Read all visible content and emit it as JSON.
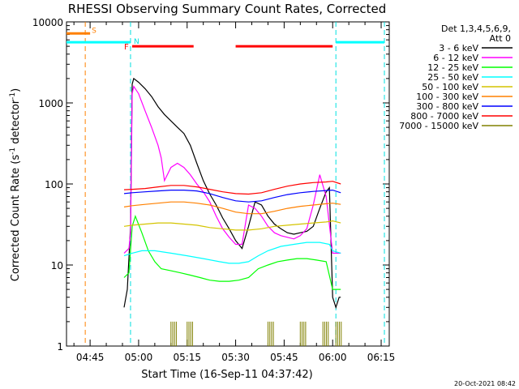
{
  "chart_data": {
    "type": "line",
    "title": "RHESSI Observing Summary Count Rates, Corrected",
    "xlabel": "Start Time (16-Sep-11 04:37:42)",
    "ylabel_main": "Corrected Count Rate (s",
    "ylabel_sup": "-1",
    "ylabel_mid": " detector",
    "ylabel_sup2": "-1",
    "ylabel_end": ")",
    "yscale": "log",
    "ylim": [
      1,
      10000
    ],
    "xlim_min": [
      37.7,
      137.5
    ],
    "x_unit": "minutes after 04:00 UT",
    "x_ticks": [
      {
        "min": 45,
        "label": "04:45"
      },
      {
        "min": 60,
        "label": "05:00"
      },
      {
        "min": 75,
        "label": "05:15"
      },
      {
        "min": 90,
        "label": "05:30"
      },
      {
        "min": 105,
        "label": "05:45"
      },
      {
        "min": 120,
        "label": "06:00"
      },
      {
        "min": 135,
        "label": "06:15"
      }
    ],
    "y_ticks": [
      {
        "v": 1,
        "label": "1"
      },
      {
        "v": 10,
        "label": "10"
      },
      {
        "v": 100,
        "label": "100"
      },
      {
        "v": 1000,
        "label": "1000"
      },
      {
        "v": 10000,
        "label": "10000"
      }
    ],
    "legend": {
      "header1": "Det 1,3,4,5,6,9,",
      "header2": "Att 0",
      "placement": "right"
    },
    "annotations": {
      "S": "S",
      "N": "N",
      "F": "F",
      "timestamp": "20-Oct-2021 08:42"
    },
    "markers": {
      "saa_line_min": 43.5,
      "night_lines_min": [
        57.5,
        121,
        136
      ],
      "flare_bars": [
        [
          58,
          77
        ],
        [
          90,
          120
        ]
      ],
      "flare_level": 5000,
      "night_bars": [
        [
          37.7,
          57.5
        ],
        [
          121,
          136
        ]
      ],
      "night_level": 5600,
      "saa_bar": [
        37.7,
        45
      ],
      "saa_level": 7200
    },
    "series": [
      {
        "name": "3 - 6 keV",
        "color": "#000000",
        "points": [
          [
            55.5,
            3
          ],
          [
            56.5,
            5
          ],
          [
            57.5,
            30
          ],
          [
            58,
            1700
          ],
          [
            58.5,
            2000
          ],
          [
            60,
            1800
          ],
          [
            62,
            1500
          ],
          [
            64,
            1200
          ],
          [
            66,
            900
          ],
          [
            68,
            720
          ],
          [
            70,
            600
          ],
          [
            72,
            500
          ],
          [
            74,
            420
          ],
          [
            76,
            300
          ],
          [
            78,
            180
          ],
          [
            80,
            110
          ],
          [
            82,
            75
          ],
          [
            84,
            55
          ],
          [
            86,
            38
          ],
          [
            88,
            28
          ],
          [
            90,
            20
          ],
          [
            92,
            16
          ],
          [
            94,
            30
          ],
          [
            96,
            60
          ],
          [
            98,
            55
          ],
          [
            100,
            40
          ],
          [
            102,
            32
          ],
          [
            104,
            28
          ],
          [
            106,
            25
          ],
          [
            108,
            24
          ],
          [
            110,
            25
          ],
          [
            112,
            26
          ],
          [
            114,
            30
          ],
          [
            116,
            50
          ],
          [
            118,
            80
          ],
          [
            119,
            90
          ],
          [
            120,
            4
          ],
          [
            121,
            3
          ],
          [
            122,
            4
          ],
          [
            122.5,
            4
          ]
        ]
      },
      {
        "name": "6 - 12 keV",
        "color": "#ff00ff",
        "points": [
          [
            55.5,
            14
          ],
          [
            57,
            16
          ],
          [
            57.5,
            25
          ],
          [
            58,
            1300
          ],
          [
            58.5,
            1600
          ],
          [
            60,
            1300
          ],
          [
            62,
            800
          ],
          [
            64,
            500
          ],
          [
            66,
            300
          ],
          [
            67,
            210
          ],
          [
            68,
            110
          ],
          [
            70,
            160
          ],
          [
            72,
            180
          ],
          [
            74,
            160
          ],
          [
            76,
            130
          ],
          [
            78,
            100
          ],
          [
            80,
            80
          ],
          [
            82,
            60
          ],
          [
            84,
            40
          ],
          [
            86,
            28
          ],
          [
            88,
            22
          ],
          [
            90,
            18
          ],
          [
            92,
            18
          ],
          [
            94,
            55
          ],
          [
            96,
            50
          ],
          [
            98,
            40
          ],
          [
            100,
            30
          ],
          [
            102,
            25
          ],
          [
            104,
            23
          ],
          [
            106,
            22
          ],
          [
            108,
            21
          ],
          [
            110,
            23
          ],
          [
            112,
            28
          ],
          [
            114,
            55
          ],
          [
            116,
            130
          ],
          [
            118,
            70
          ],
          [
            120,
            14
          ],
          [
            122.5,
            14
          ]
        ]
      },
      {
        "name": "12 - 25 keV",
        "color": "#00ff00",
        "points": [
          [
            55.5,
            7
          ],
          [
            57,
            8
          ],
          [
            58,
            30
          ],
          [
            59,
            40
          ],
          [
            61,
            25
          ],
          [
            63,
            15
          ],
          [
            65,
            11
          ],
          [
            67,
            9
          ],
          [
            70,
            8.5
          ],
          [
            73,
            8
          ],
          [
            76,
            7.5
          ],
          [
            79,
            7
          ],
          [
            82,
            6.5
          ],
          [
            85,
            6.3
          ],
          [
            88,
            6.3
          ],
          [
            91,
            6.5
          ],
          [
            94,
            7
          ],
          [
            97,
            9
          ],
          [
            100,
            10
          ],
          [
            103,
            11
          ],
          [
            106,
            11.5
          ],
          [
            109,
            12
          ],
          [
            112,
            12
          ],
          [
            115,
            11.5
          ],
          [
            118,
            11
          ],
          [
            120,
            5
          ],
          [
            122.5,
            5
          ]
        ]
      },
      {
        "name": "25 - 50 keV",
        "color": "#00ffff",
        "points": [
          [
            55.5,
            13
          ],
          [
            58,
            14
          ],
          [
            61,
            15
          ],
          [
            65,
            15
          ],
          [
            70,
            14
          ],
          [
            75,
            13
          ],
          [
            80,
            12
          ],
          [
            85,
            11
          ],
          [
            88,
            10.5
          ],
          [
            91,
            10.5
          ],
          [
            94,
            11
          ],
          [
            97,
            13
          ],
          [
            100,
            15
          ],
          [
            104,
            17
          ],
          [
            108,
            18
          ],
          [
            112,
            19
          ],
          [
            116,
            19
          ],
          [
            119,
            18
          ],
          [
            120,
            15
          ],
          [
            122.5,
            14
          ]
        ]
      },
      {
        "name": "50 - 100 keV",
        "color": "#d4c400",
        "points": [
          [
            55.5,
            30
          ],
          [
            58,
            31
          ],
          [
            62,
            32
          ],
          [
            66,
            33
          ],
          [
            70,
            33
          ],
          [
            74,
            32
          ],
          [
            78,
            31
          ],
          [
            82,
            29
          ],
          [
            86,
            28
          ],
          [
            90,
            27
          ],
          [
            94,
            27
          ],
          [
            98,
            28
          ],
          [
            102,
            30
          ],
          [
            106,
            31
          ],
          [
            110,
            32
          ],
          [
            114,
            33
          ],
          [
            118,
            34
          ],
          [
            120,
            35
          ],
          [
            122.5,
            33
          ]
        ]
      },
      {
        "name": "100 - 300 keV",
        "color": "#ff8000",
        "points": [
          [
            55.5,
            52
          ],
          [
            58,
            54
          ],
          [
            62,
            56
          ],
          [
            66,
            58
          ],
          [
            70,
            60
          ],
          [
            74,
            60
          ],
          [
            78,
            58
          ],
          [
            82,
            55
          ],
          [
            86,
            50
          ],
          [
            90,
            45
          ],
          [
            94,
            43
          ],
          [
            98,
            43
          ],
          [
            102,
            46
          ],
          [
            106,
            50
          ],
          [
            110,
            53
          ],
          [
            114,
            55
          ],
          [
            118,
            57
          ],
          [
            120,
            58
          ],
          [
            122.5,
            56
          ]
        ]
      },
      {
        "name": "300 - 800 keV",
        "color": "#0000ff",
        "points": [
          [
            55.5,
            76
          ],
          [
            58,
            78
          ],
          [
            62,
            80
          ],
          [
            66,
            82
          ],
          [
            70,
            84
          ],
          [
            74,
            84
          ],
          [
            78,
            82
          ],
          [
            82,
            76
          ],
          [
            86,
            68
          ],
          [
            90,
            62
          ],
          [
            94,
            60
          ],
          [
            98,
            62
          ],
          [
            102,
            68
          ],
          [
            106,
            74
          ],
          [
            110,
            78
          ],
          [
            114,
            81
          ],
          [
            118,
            83
          ],
          [
            120,
            84
          ],
          [
            122.5,
            78
          ]
        ]
      },
      {
        "name": "800 - 7000 keV",
        "color": "#ff0000",
        "points": [
          [
            55.5,
            85
          ],
          [
            58,
            86
          ],
          [
            62,
            88
          ],
          [
            66,
            92
          ],
          [
            70,
            96
          ],
          [
            74,
            96
          ],
          [
            78,
            92
          ],
          [
            82,
            86
          ],
          [
            86,
            80
          ],
          [
            90,
            76
          ],
          [
            94,
            75
          ],
          [
            98,
            78
          ],
          [
            102,
            86
          ],
          [
            106,
            94
          ],
          [
            110,
            100
          ],
          [
            114,
            104
          ],
          [
            118,
            106
          ],
          [
            120,
            108
          ],
          [
            122.5,
            100
          ]
        ]
      },
      {
        "name": "7000 - 15000 keV",
        "color": "#808000",
        "points": [
          [
            70,
            2
          ],
          [
            75,
            2
          ],
          [
            100,
            2
          ],
          [
            110,
            2
          ],
          [
            117,
            2
          ],
          [
            121,
            2
          ]
        ]
      }
    ]
  }
}
